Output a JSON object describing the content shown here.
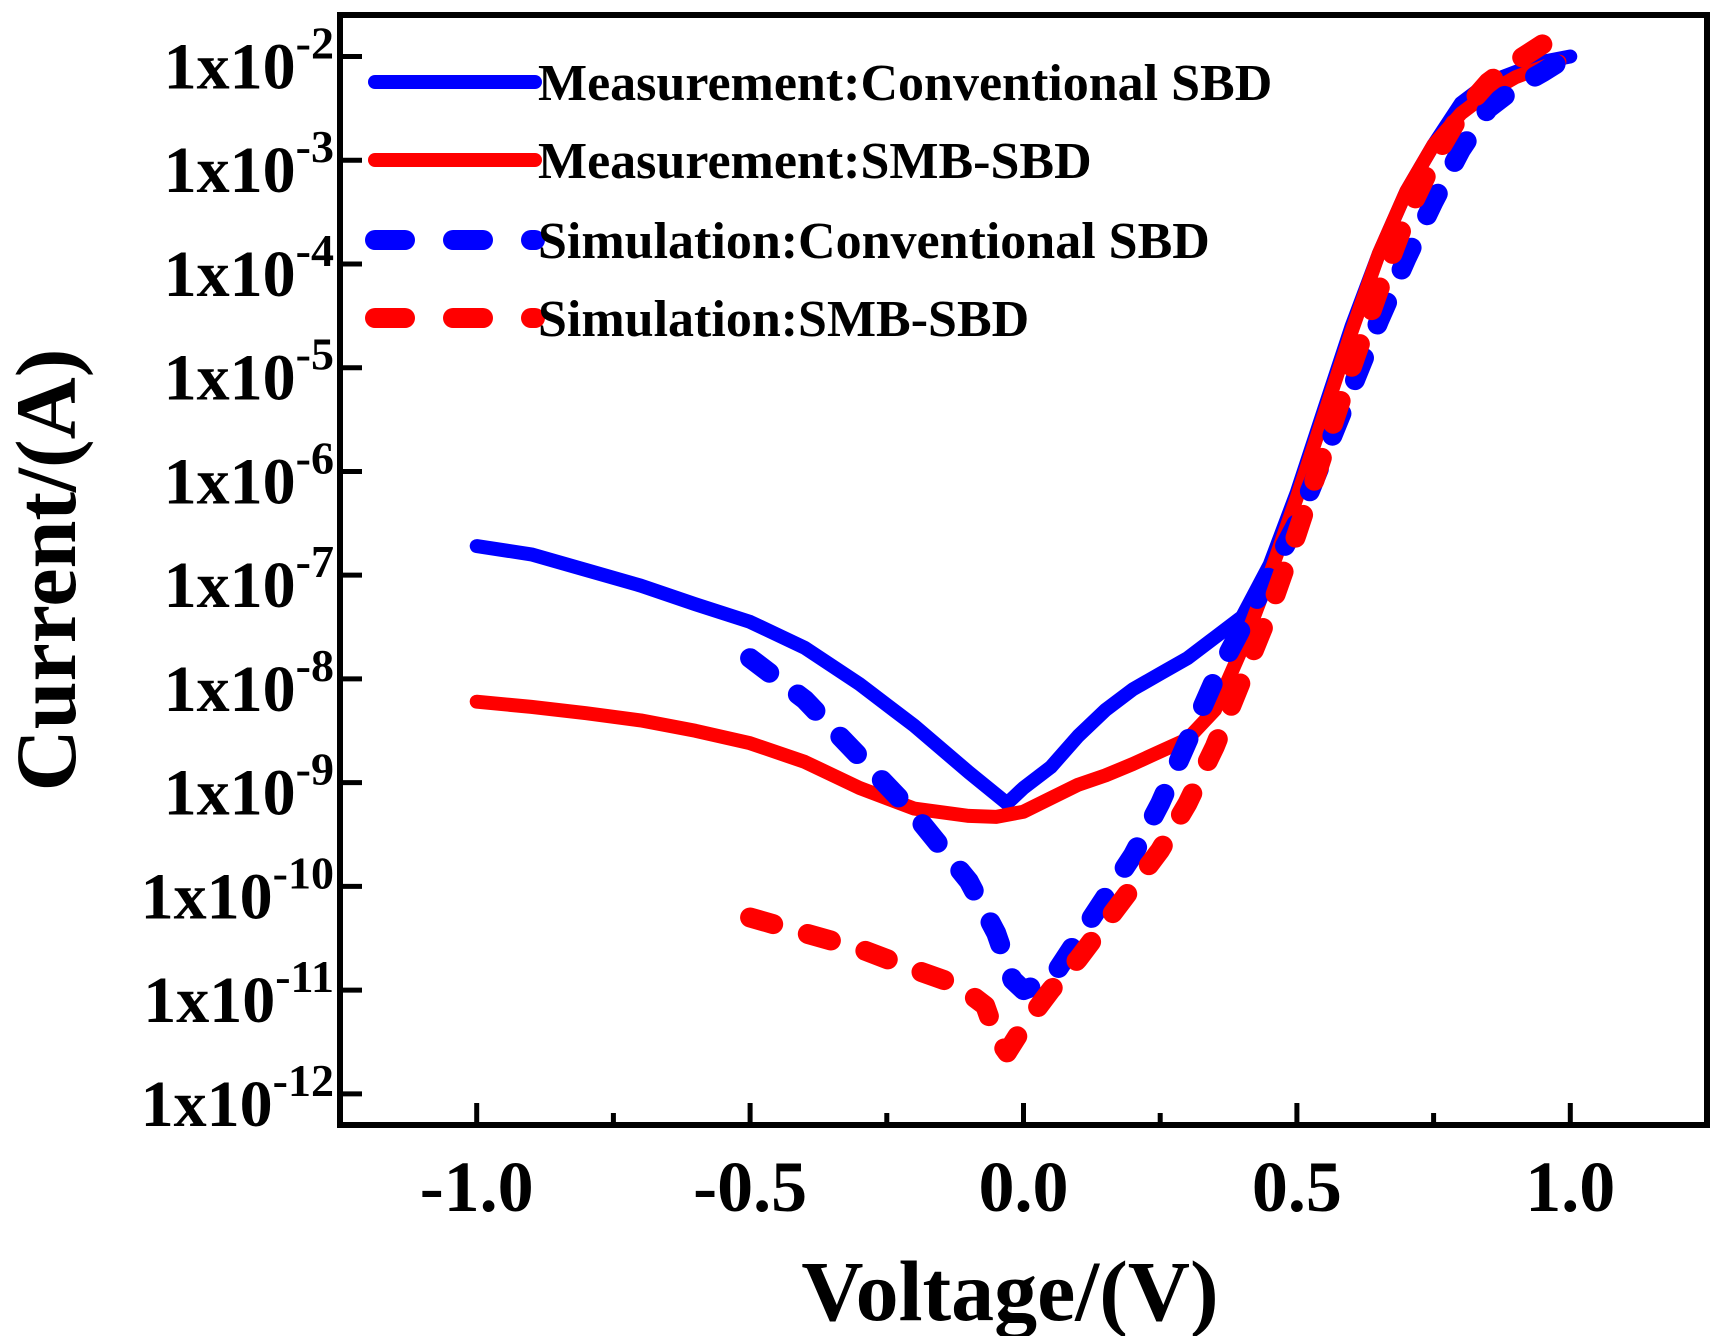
{
  "chart_data": {
    "type": "line",
    "title": "",
    "xlabel": "Voltage/(V)",
    "ylabel": "Current/(A)",
    "xlim": [
      -1.25,
      1.25
    ],
    "ylim_log10": [
      -12.3,
      -1.6
    ],
    "y_scale": "log",
    "grid": false,
    "legend_position": "top-left",
    "x_ticks": [
      {
        "value": -1.0,
        "label": "-1.0"
      },
      {
        "value": -0.5,
        "label": "-0.5"
      },
      {
        "value": 0.0,
        "label": "0.0"
      },
      {
        "value": 0.5,
        "label": "0.5"
      },
      {
        "value": 1.0,
        "label": "1.0"
      }
    ],
    "y_ticks": [
      {
        "exp": -2,
        "base": "1x10",
        "sup": "-2"
      },
      {
        "exp": -3,
        "base": "1x10",
        "sup": "-3"
      },
      {
        "exp": -4,
        "base": "1x10",
        "sup": "-4"
      },
      {
        "exp": -5,
        "base": "1x10",
        "sup": "-5"
      },
      {
        "exp": -6,
        "base": "1x10",
        "sup": "-6"
      },
      {
        "exp": -7,
        "base": "1x10",
        "sup": "-7"
      },
      {
        "exp": -8,
        "base": "1x10",
        "sup": "-8"
      },
      {
        "exp": -9,
        "base": "1x10",
        "sup": "-9"
      },
      {
        "exp": -10,
        "base": "1x10",
        "sup": "-10"
      },
      {
        "exp": -11,
        "base": "1x10",
        "sup": "-11"
      },
      {
        "exp": -12,
        "base": "1x10",
        "sup": "-12"
      }
    ],
    "series": [
      {
        "name": "Measurement:Conventional SBD",
        "color": "#0000ff",
        "style": "solid",
        "x": [
          -1.0,
          -0.9,
          -0.8,
          -0.7,
          -0.6,
          -0.5,
          -0.4,
          -0.3,
          -0.2,
          -0.1,
          -0.03,
          0.0,
          0.05,
          0.1,
          0.15,
          0.2,
          0.25,
          0.3,
          0.35,
          0.4,
          0.45,
          0.5,
          0.55,
          0.6,
          0.65,
          0.7,
          0.75,
          0.8,
          0.85,
          0.9,
          0.95,
          1.0
        ],
        "log10_y": [
          -6.72,
          -6.8,
          -6.95,
          -7.1,
          -7.28,
          -7.45,
          -7.7,
          -8.05,
          -8.45,
          -8.9,
          -9.2,
          -9.05,
          -8.85,
          -8.55,
          -8.3,
          -8.1,
          -7.95,
          -7.8,
          -7.6,
          -7.4,
          -6.9,
          -6.2,
          -5.4,
          -4.6,
          -3.9,
          -3.3,
          -2.85,
          -2.45,
          -2.25,
          -2.15,
          -2.05,
          -2.0
        ]
      },
      {
        "name": "Measurement:SMB-SBD",
        "color": "#ff0000",
        "style": "solid",
        "x": [
          -1.0,
          -0.9,
          -0.8,
          -0.7,
          -0.6,
          -0.5,
          -0.4,
          -0.3,
          -0.2,
          -0.1,
          -0.05,
          0.0,
          0.05,
          0.1,
          0.15,
          0.2,
          0.25,
          0.3,
          0.35,
          0.4,
          0.45,
          0.5,
          0.55,
          0.6,
          0.65,
          0.7,
          0.75,
          0.8,
          0.85,
          0.9,
          0.95,
          0.98
        ],
        "log10_y": [
          -8.22,
          -8.27,
          -8.33,
          -8.4,
          -8.5,
          -8.62,
          -8.8,
          -9.05,
          -9.25,
          -9.32,
          -9.33,
          -9.28,
          -9.15,
          -9.02,
          -8.93,
          -8.82,
          -8.7,
          -8.58,
          -8.3,
          -7.7,
          -7.0,
          -6.25,
          -5.45,
          -4.65,
          -3.9,
          -3.3,
          -2.85,
          -2.55,
          -2.35,
          -2.2,
          -2.1,
          -2.05
        ]
      },
      {
        "name": "Simulation:Conventional SBD",
        "color": "#0000ff",
        "style": "dashed",
        "x": [
          -0.5,
          -0.4,
          -0.3,
          -0.2,
          -0.1,
          -0.05,
          -0.02,
          0.0,
          0.05,
          0.1,
          0.15,
          0.2,
          0.25,
          0.3,
          0.35,
          0.4,
          0.45,
          0.5,
          0.55,
          0.6,
          0.65,
          0.7,
          0.75,
          0.8,
          0.85,
          0.9,
          0.95,
          0.98
        ],
        "log10_y": [
          -7.8,
          -8.2,
          -8.75,
          -9.3,
          -9.95,
          -10.45,
          -10.9,
          -11.0,
          -10.9,
          -10.5,
          -10.1,
          -9.7,
          -9.2,
          -8.6,
          -8.0,
          -7.5,
          -7.0,
          -6.5,
          -5.85,
          -5.2,
          -4.55,
          -3.95,
          -3.4,
          -2.9,
          -2.5,
          -2.3,
          -2.15,
          -2.05
        ]
      },
      {
        "name": "Simulation:SMB-SBD",
        "color": "#ff0000",
        "style": "dashed",
        "x": [
          -0.5,
          -0.4,
          -0.3,
          -0.2,
          -0.12,
          -0.07,
          -0.05,
          -0.03,
          0.0,
          0.05,
          0.1,
          0.15,
          0.2,
          0.25,
          0.3,
          0.35,
          0.4,
          0.45,
          0.5,
          0.55,
          0.6,
          0.65,
          0.7,
          0.75,
          0.8,
          0.85,
          0.9,
          0.95
        ],
        "log10_y": [
          -10.3,
          -10.45,
          -10.6,
          -10.8,
          -10.95,
          -11.15,
          -11.45,
          -11.6,
          -11.35,
          -11.0,
          -10.7,
          -10.35,
          -10.0,
          -9.65,
          -9.2,
          -8.65,
          -8.0,
          -7.35,
          -6.6,
          -5.8,
          -5.0,
          -4.25,
          -3.55,
          -3.0,
          -2.55,
          -2.25,
          -2.05,
          -1.88
        ]
      }
    ]
  }
}
